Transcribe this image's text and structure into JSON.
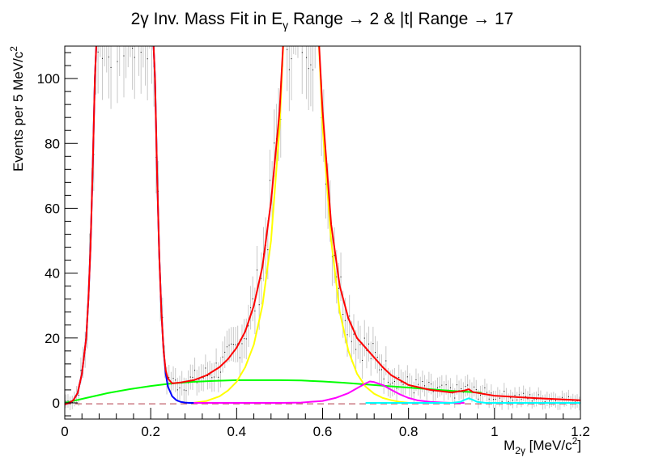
{
  "chart_data": {
    "type": "line",
    "title": "2γ Inv. Mass Fit in Eγ Range → 2 & |t| Range → 17",
    "title_parts": {
      "pre": "2γ Inv. Mass Fit in E",
      "sub": "γ",
      "post": " Range → 2 & |t| Range → 17"
    },
    "xlabel": "M2γ [MeV/c2]",
    "xlabel_parts": {
      "a": "M",
      "sub": "2γ",
      "b": " [MeV/c",
      "sup": "2",
      "c": "]"
    },
    "ylabel": "Events per 5 MeV/c2",
    "ylabel_parts": {
      "a": "Events per 5 MeV/c",
      "sup": "2"
    },
    "xlim": [
      0,
      1.2
    ],
    "ylim": [
      -5,
      110
    ],
    "x_ticks": [
      "0",
      "0.2",
      "0.4",
      "0.6",
      "0.8",
      "1",
      "1.2"
    ],
    "x_tick_values": [
      0,
      0.2,
      0.4,
      0.6,
      0.8,
      1.0,
      1.2
    ],
    "y_ticks": [
      "0",
      "20",
      "40",
      "60",
      "80",
      "100"
    ],
    "y_tick_values": [
      0,
      20,
      40,
      60,
      80,
      100
    ],
    "grid": false,
    "series": [
      {
        "color": "#0000ff",
        "x": [
          0,
          0.01,
          0.02,
          0.03,
          0.04,
          0.05,
          0.055,
          0.06,
          0.065,
          0.07,
          0.075,
          0.205,
          0.21,
          0.215,
          0.22,
          0.225,
          0.23,
          0.235,
          0.24,
          0.25,
          0.26,
          0.27,
          0.28,
          0.29,
          0.3
        ],
        "y": [
          -0.5,
          0,
          0.8,
          3,
          9,
          20,
          32,
          48,
          72,
          100,
          115,
          115,
          100,
          70,
          45,
          28,
          16,
          9,
          5,
          2,
          0.8,
          0.3,
          0.1,
          0,
          0
        ]
      },
      {
        "color": "#ff0000",
        "x": [
          0,
          0.01,
          0.02,
          0.03,
          0.04,
          0.05,
          0.055,
          0.06,
          0.065,
          0.07,
          0.075,
          0.205,
          0.21,
          0.215,
          0.22,
          0.225,
          0.23,
          0.235,
          0.24,
          0.25,
          0.27,
          0.3,
          0.33,
          0.36,
          0.38,
          0.4,
          0.42,
          0.44,
          0.46,
          0.48,
          0.5,
          0.51,
          0.59,
          0.6,
          0.62,
          0.64,
          0.66,
          0.68,
          0.7,
          0.72,
          0.74,
          0.76,
          0.8,
          0.85,
          0.9,
          0.93,
          0.94,
          0.95,
          1.0,
          1.05,
          1.1,
          1.15,
          1.2
        ],
        "y": [
          -0.5,
          0,
          0.8,
          3,
          9,
          20,
          32,
          48,
          72,
          100,
          115,
          115,
          100,
          70,
          45,
          28,
          16,
          10,
          7.5,
          6,
          6.3,
          7,
          8.5,
          11,
          13.5,
          17,
          22,
          30,
          42,
          62,
          90,
          115,
          115,
          90,
          55,
          36,
          26,
          20,
          17,
          14,
          11,
          8.5,
          5.5,
          4,
          3.2,
          3.8,
          4.2,
          3.3,
          2.2,
          1.8,
          1.4,
          1.1,
          0.8
        ]
      },
      {
        "color": "#00ff00",
        "x": [
          0,
          0.05,
          0.1,
          0.15,
          0.2,
          0.25,
          0.3,
          0.35,
          0.4,
          0.45,
          0.5,
          0.55,
          0.6,
          0.65,
          0.7,
          0.75,
          0.8,
          0.85,
          0.9,
          0.95,
          0.97
        ],
        "y": [
          0,
          1.5,
          3,
          4.2,
          5.2,
          6,
          6.5,
          6.8,
          7,
          7,
          7,
          6.9,
          6.6,
          6.2,
          5.7,
          5.2,
          4.7,
          4.2,
          3.7,
          3.3,
          3.1
        ]
      },
      {
        "color": "#ffff00",
        "x": [
          0.3,
          0.33,
          0.36,
          0.38,
          0.4,
          0.42,
          0.44,
          0.46,
          0.48,
          0.5,
          0.51,
          0.59,
          0.6,
          0.62,
          0.64,
          0.66,
          0.68,
          0.7,
          0.72,
          0.74,
          0.76,
          0.78,
          0.8
        ],
        "y": [
          0,
          0.6,
          2,
          3.8,
          6.5,
          11,
          18,
          30,
          50,
          85,
          115,
          115,
          85,
          50,
          28,
          16,
          9,
          5,
          2.8,
          1.5,
          0.8,
          0.3,
          0
        ]
      },
      {
        "color": "#ff00ff",
        "x": [
          0.3,
          0.5,
          0.55,
          0.6,
          0.63,
          0.66,
          0.68,
          0.7,
          0.71,
          0.72,
          0.74,
          0.76,
          0.78,
          0.8,
          0.82,
          0.85,
          0.88,
          0.9,
          0.93
        ],
        "y": [
          0,
          0,
          0.1,
          0.6,
          1.5,
          3,
          4.5,
          6,
          6.6,
          6.4,
          5.5,
          4,
          2.6,
          1.5,
          0.8,
          0.3,
          0.1,
          0,
          0
        ]
      },
      {
        "color": "#00ffff",
        "x": [
          0.7,
          0.9,
          0.92,
          0.93,
          0.94,
          0.95,
          0.96,
          0.98,
          1.0,
          1.2
        ],
        "y": [
          0,
          0,
          0.3,
          0.9,
          1.4,
          0.9,
          0.3,
          0,
          0,
          0
        ]
      }
    ],
    "baseline": {
      "color": "#b23a48",
      "style": "dashed",
      "y": -0.3
    },
    "error_band_color": "#c8c8c8"
  }
}
